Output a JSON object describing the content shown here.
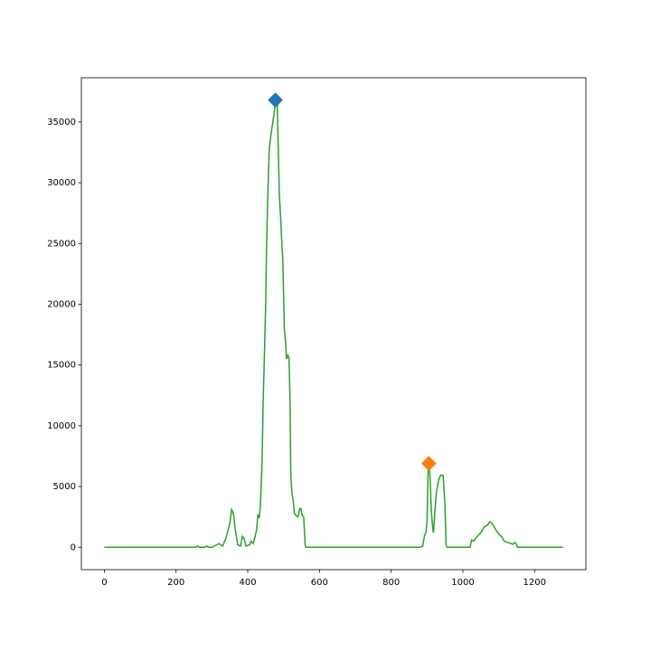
{
  "chart_data": {
    "type": "line",
    "x": [
      0,
      255,
      260,
      265,
      280,
      285,
      290,
      300,
      320,
      330,
      340,
      350,
      355,
      360,
      365,
      372,
      380,
      385,
      390,
      395,
      405,
      410,
      415,
      420,
      425,
      428,
      432,
      435,
      440,
      443,
      447,
      450,
      452,
      455,
      458,
      460,
      465,
      470,
      475,
      478,
      482,
      485,
      488,
      492,
      495,
      498,
      502,
      505,
      508,
      512,
      515,
      518,
      520,
      523,
      527,
      530,
      535,
      540,
      545,
      548,
      552,
      556,
      560,
      562,
      880,
      888,
      893,
      897,
      900,
      903,
      905,
      908,
      912,
      916,
      918,
      922,
      926,
      932,
      938,
      945,
      950,
      953,
      956,
      1020,
      1024,
      1030,
      1040,
      1050,
      1060,
      1068,
      1075,
      1080,
      1085,
      1090,
      1100,
      1110,
      1115,
      1125,
      1135,
      1140,
      1145,
      1150,
      1152,
      1279
    ],
    "values": [
      0,
      0,
      100,
      0,
      0,
      100,
      0,
      0,
      300,
      100,
      800,
      2000,
      3100,
      2800,
      1500,
      200,
      100,
      900,
      700,
      100,
      200,
      500,
      300,
      800,
      1500,
      2700,
      2400,
      3300,
      7000,
      12000,
      16500,
      20000,
      24000,
      28000,
      31000,
      32800,
      34000,
      35000,
      36000,
      36800,
      36700,
      33000,
      29000,
      27000,
      25000,
      23500,
      18000,
      17000,
      15500,
      15800,
      15600,
      12000,
      6000,
      4500,
      3800,
      2800,
      2600,
      2500,
      3200,
      3200,
      2600,
      2500,
      200,
      0,
      0,
      100,
      1000,
      1200,
      2200,
      6500,
      6900,
      6000,
      3000,
      1500,
      1200,
      3000,
      4500,
      5500,
      5950,
      5900,
      3500,
      200,
      0,
      0,
      600,
      500,
      900,
      1200,
      1700,
      1800,
      2100,
      2000,
      1800,
      1500,
      1100,
      800,
      500,
      400,
      300,
      250,
      400,
      200,
      0,
      0
    ],
    "color": "#2ca02c",
    "points": [
      {
        "x": 477,
        "y": 36800,
        "color": "#1f77b4"
      },
      {
        "x": 905,
        "y": 6900,
        "color": "#ff7f0e"
      }
    ],
    "xlim": [
      -64,
      1343
    ],
    "ylim": [
      -1840,
      38640
    ],
    "xticks": [
      0,
      200,
      400,
      600,
      800,
      1000,
      1200
    ],
    "yticks": [
      0,
      5000,
      10000,
      15000,
      20000,
      25000,
      30000,
      35000
    ],
    "grid": false
  }
}
